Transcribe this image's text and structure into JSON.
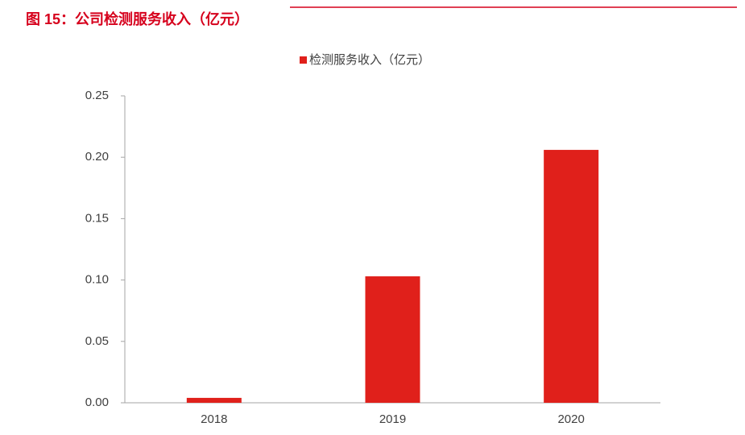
{
  "chart_data": {
    "type": "bar",
    "title": "图 15：公司检测服务收入（亿元）",
    "categories": [
      "2018",
      "2019",
      "2020"
    ],
    "series": [
      {
        "name": "检测服务收入（亿元）",
        "color": "#e0201b",
        "values": [
          0.004,
          0.103,
          0.206
        ]
      }
    ],
    "ylim": [
      0,
      0.25
    ],
    "yticks": [
      {
        "value": 0,
        "label": "0.00"
      },
      {
        "value": 0.05,
        "label": "0.05"
      },
      {
        "value": 0.1,
        "label": "0.10"
      },
      {
        "value": 0.15,
        "label": "0.15"
      },
      {
        "value": 0.2,
        "label": "0.20"
      },
      {
        "value": 0.25,
        "label": "0.25"
      }
    ],
    "grid": false
  }
}
